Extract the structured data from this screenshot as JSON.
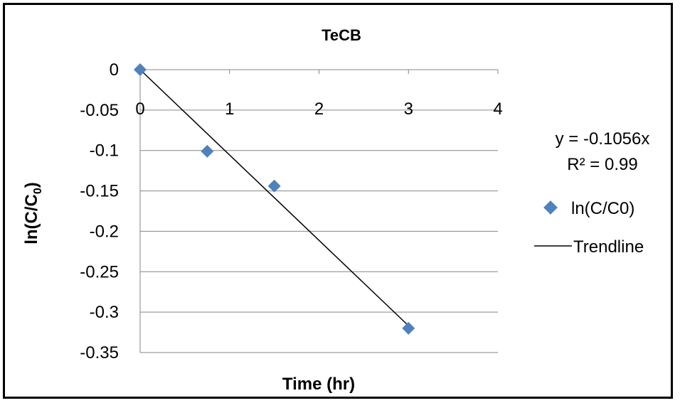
{
  "chart_data": {
    "type": "scatter",
    "title": "TeCB",
    "xlabel": "Time (hr)",
    "ylabel_main": "ln(C/C",
    "ylabel_sub": "0",
    "ylabel_close": ")",
    "xlim": [
      0,
      4
    ],
    "ylim": [
      -0.35,
      0
    ],
    "x_ticks": [
      "0",
      "1",
      "2",
      "3",
      "4"
    ],
    "y_ticks": [
      "0",
      "-0.05",
      "-0.1",
      "-0.15",
      "-0.2",
      "-0.25",
      "-0.3",
      "-0.35"
    ],
    "grid": "horizontal",
    "legend_position": "right",
    "series": [
      {
        "name": "ln(C/C0)",
        "marker": "diamond",
        "color": "#4F81BD",
        "x": [
          0,
          0.75,
          1.5,
          3
        ],
        "y": [
          0,
          -0.101,
          -0.144,
          -0.32
        ]
      }
    ],
    "trendline": {
      "name": "Trendline",
      "color": "#000000",
      "slope": -0.1056,
      "x_range": [
        0,
        3
      ],
      "equation": "y = -0.1056x",
      "r_squared": "R² = 0.99"
    }
  }
}
